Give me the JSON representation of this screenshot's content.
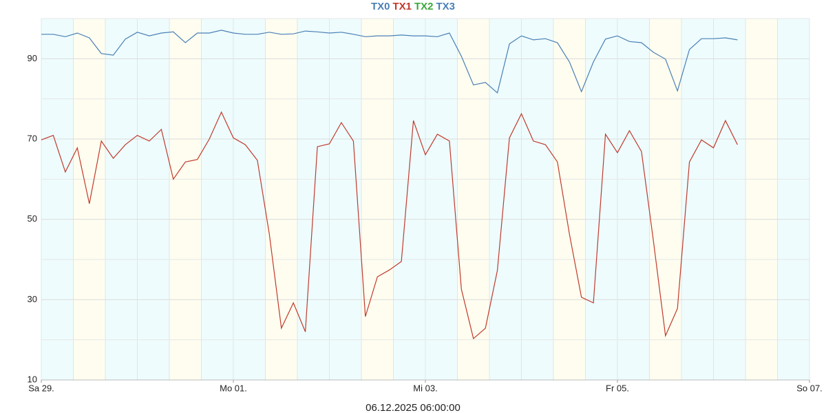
{
  "chart_data": {
    "type": "line",
    "footer": "06.12.2025 06:00:00",
    "x": [
      "2025-11-29T00:00",
      "2025-11-29T03:00",
      "2025-11-29T06:00",
      "2025-11-29T09:00",
      "2025-11-29T12:00",
      "2025-11-29T15:00",
      "2025-11-29T18:00",
      "2025-11-29T21:00",
      "2025-11-30T00:00",
      "2025-11-30T03:00",
      "2025-11-30T06:00",
      "2025-11-30T09:00",
      "2025-11-30T12:00",
      "2025-11-30T15:00",
      "2025-11-30T18:00",
      "2025-11-30T21:00",
      "2025-12-01T00:00",
      "2025-12-01T03:00",
      "2025-12-01T06:00",
      "2025-12-01T09:00",
      "2025-12-01T12:00",
      "2025-12-01T15:00",
      "2025-12-01T18:00",
      "2025-12-01T21:00",
      "2025-12-02T00:00",
      "2025-12-02T03:00",
      "2025-12-02T06:00",
      "2025-12-02T09:00",
      "2025-12-02T12:00",
      "2025-12-02T15:00",
      "2025-12-02T18:00",
      "2025-12-02T21:00",
      "2025-12-03T00:00",
      "2025-12-03T03:00",
      "2025-12-03T06:00",
      "2025-12-03T09:00",
      "2025-12-03T12:00",
      "2025-12-03T15:00",
      "2025-12-03T18:00",
      "2025-12-03T21:00",
      "2025-12-04T00:00",
      "2025-12-04T03:00",
      "2025-12-04T06:00",
      "2025-12-04T09:00",
      "2025-12-04T12:00",
      "2025-12-04T15:00",
      "2025-12-04T18:00",
      "2025-12-04T21:00",
      "2025-12-05T00:00",
      "2025-12-05T03:00",
      "2025-12-05T06:00",
      "2025-12-05T09:00",
      "2025-12-05T12:00",
      "2025-12-05T15:00",
      "2025-12-05T18:00",
      "2025-12-05T21:00",
      "2025-12-06T00:00",
      "2025-12-06T03:00",
      "2025-12-06T06:00"
    ],
    "series": [
      {
        "name": "TX0",
        "color": "#4a7fb5",
        "values": [
          96.1,
          96.1,
          95.5,
          96.4,
          95.2,
          91.3,
          90.9,
          94.9,
          96.6,
          95.7,
          96.4,
          96.7,
          94.0,
          96.4,
          96.4,
          97.1,
          96.4,
          96.1,
          96.1,
          96.6,
          96.1,
          96.2,
          96.9,
          96.7,
          96.4,
          96.6,
          96.1,
          95.5,
          95.7,
          95.7,
          95.9,
          95.7,
          95.7,
          95.5,
          96.4,
          90.6,
          83.5,
          84.1,
          81.5,
          93.7,
          95.7,
          94.7,
          95.0,
          94.0,
          89.2,
          81.8,
          89.2,
          94.9,
          95.7,
          94.3,
          94.0,
          91.6,
          89.9,
          82.0,
          92.3,
          95.0,
          95.0,
          95.2,
          94.7
        ]
      },
      {
        "name": "TX1",
        "color": "#c0392b",
        "values": [
          69.8,
          70.9,
          61.8,
          67.8,
          53.9,
          69.5,
          65.2,
          68.6,
          70.9,
          69.5,
          72.4,
          60.0,
          64.3,
          64.9,
          70.0,
          76.7,
          70.3,
          68.6,
          64.7,
          46.3,
          22.9,
          29.2,
          22.0,
          68.1,
          68.8,
          74.1,
          69.5,
          25.8,
          35.7,
          37.4,
          39.5,
          74.6,
          66.1,
          71.2,
          69.5,
          32.6,
          20.3,
          22.9,
          37.3,
          70.3,
          76.3,
          69.5,
          68.6,
          64.3,
          46.3,
          30.6,
          29.2,
          71.2,
          66.6,
          72.1,
          66.9,
          44.6,
          21.0,
          27.8,
          64.3,
          69.8,
          67.8,
          74.6,
          68.6
        ]
      },
      {
        "name": "TX2",
        "color": "#3aa83a",
        "values": [
          null,
          null,
          null,
          null,
          null,
          null,
          null,
          null,
          null,
          null,
          null,
          null,
          null,
          null,
          null,
          null,
          null,
          null,
          null,
          null,
          null,
          null,
          null,
          null,
          null,
          null,
          null,
          null,
          null,
          null,
          null,
          null,
          null,
          null,
          null,
          null,
          null,
          null,
          null,
          null,
          null,
          null,
          null,
          null,
          null,
          null,
          null,
          null,
          null,
          null,
          null,
          null,
          null,
          null,
          null,
          null,
          null,
          null,
          null
        ]
      },
      {
        "name": "TX3",
        "color": "#4a7fb5",
        "values": [
          null,
          null,
          null,
          null,
          null,
          null,
          null,
          null,
          null,
          null,
          null,
          null,
          null,
          null,
          null,
          null,
          null,
          null,
          null,
          null,
          null,
          null,
          null,
          null,
          null,
          null,
          null,
          null,
          null,
          null,
          null,
          null,
          null,
          null,
          null,
          null,
          null,
          null,
          null,
          null,
          null,
          null,
          null,
          null,
          null,
          null,
          null,
          null,
          null,
          null,
          null,
          null,
          null,
          null,
          null,
          null,
          null,
          null,
          null
        ]
      }
    ],
    "xlim": [
      "2025-11-29T00:00",
      "2025-12-07T00:00"
    ],
    "xticks": [
      {
        "value": "2025-11-29T00:00",
        "label": "Sa 29."
      },
      {
        "value": "2025-12-01T00:00",
        "label": "Mo 01."
      },
      {
        "value": "2025-12-03T00:00",
        "label": "Mi 03."
      },
      {
        "value": "2025-12-05T00:00",
        "label": "Fr 05."
      },
      {
        "value": "2025-12-07T00:00",
        "label": "So 07."
      }
    ],
    "ylim": [
      10,
      100
    ],
    "yticks": [
      10,
      30,
      50,
      70,
      90
    ],
    "yminorticks": [
      20,
      40,
      60,
      80,
      100
    ],
    "grid": true,
    "legend": "top"
  }
}
